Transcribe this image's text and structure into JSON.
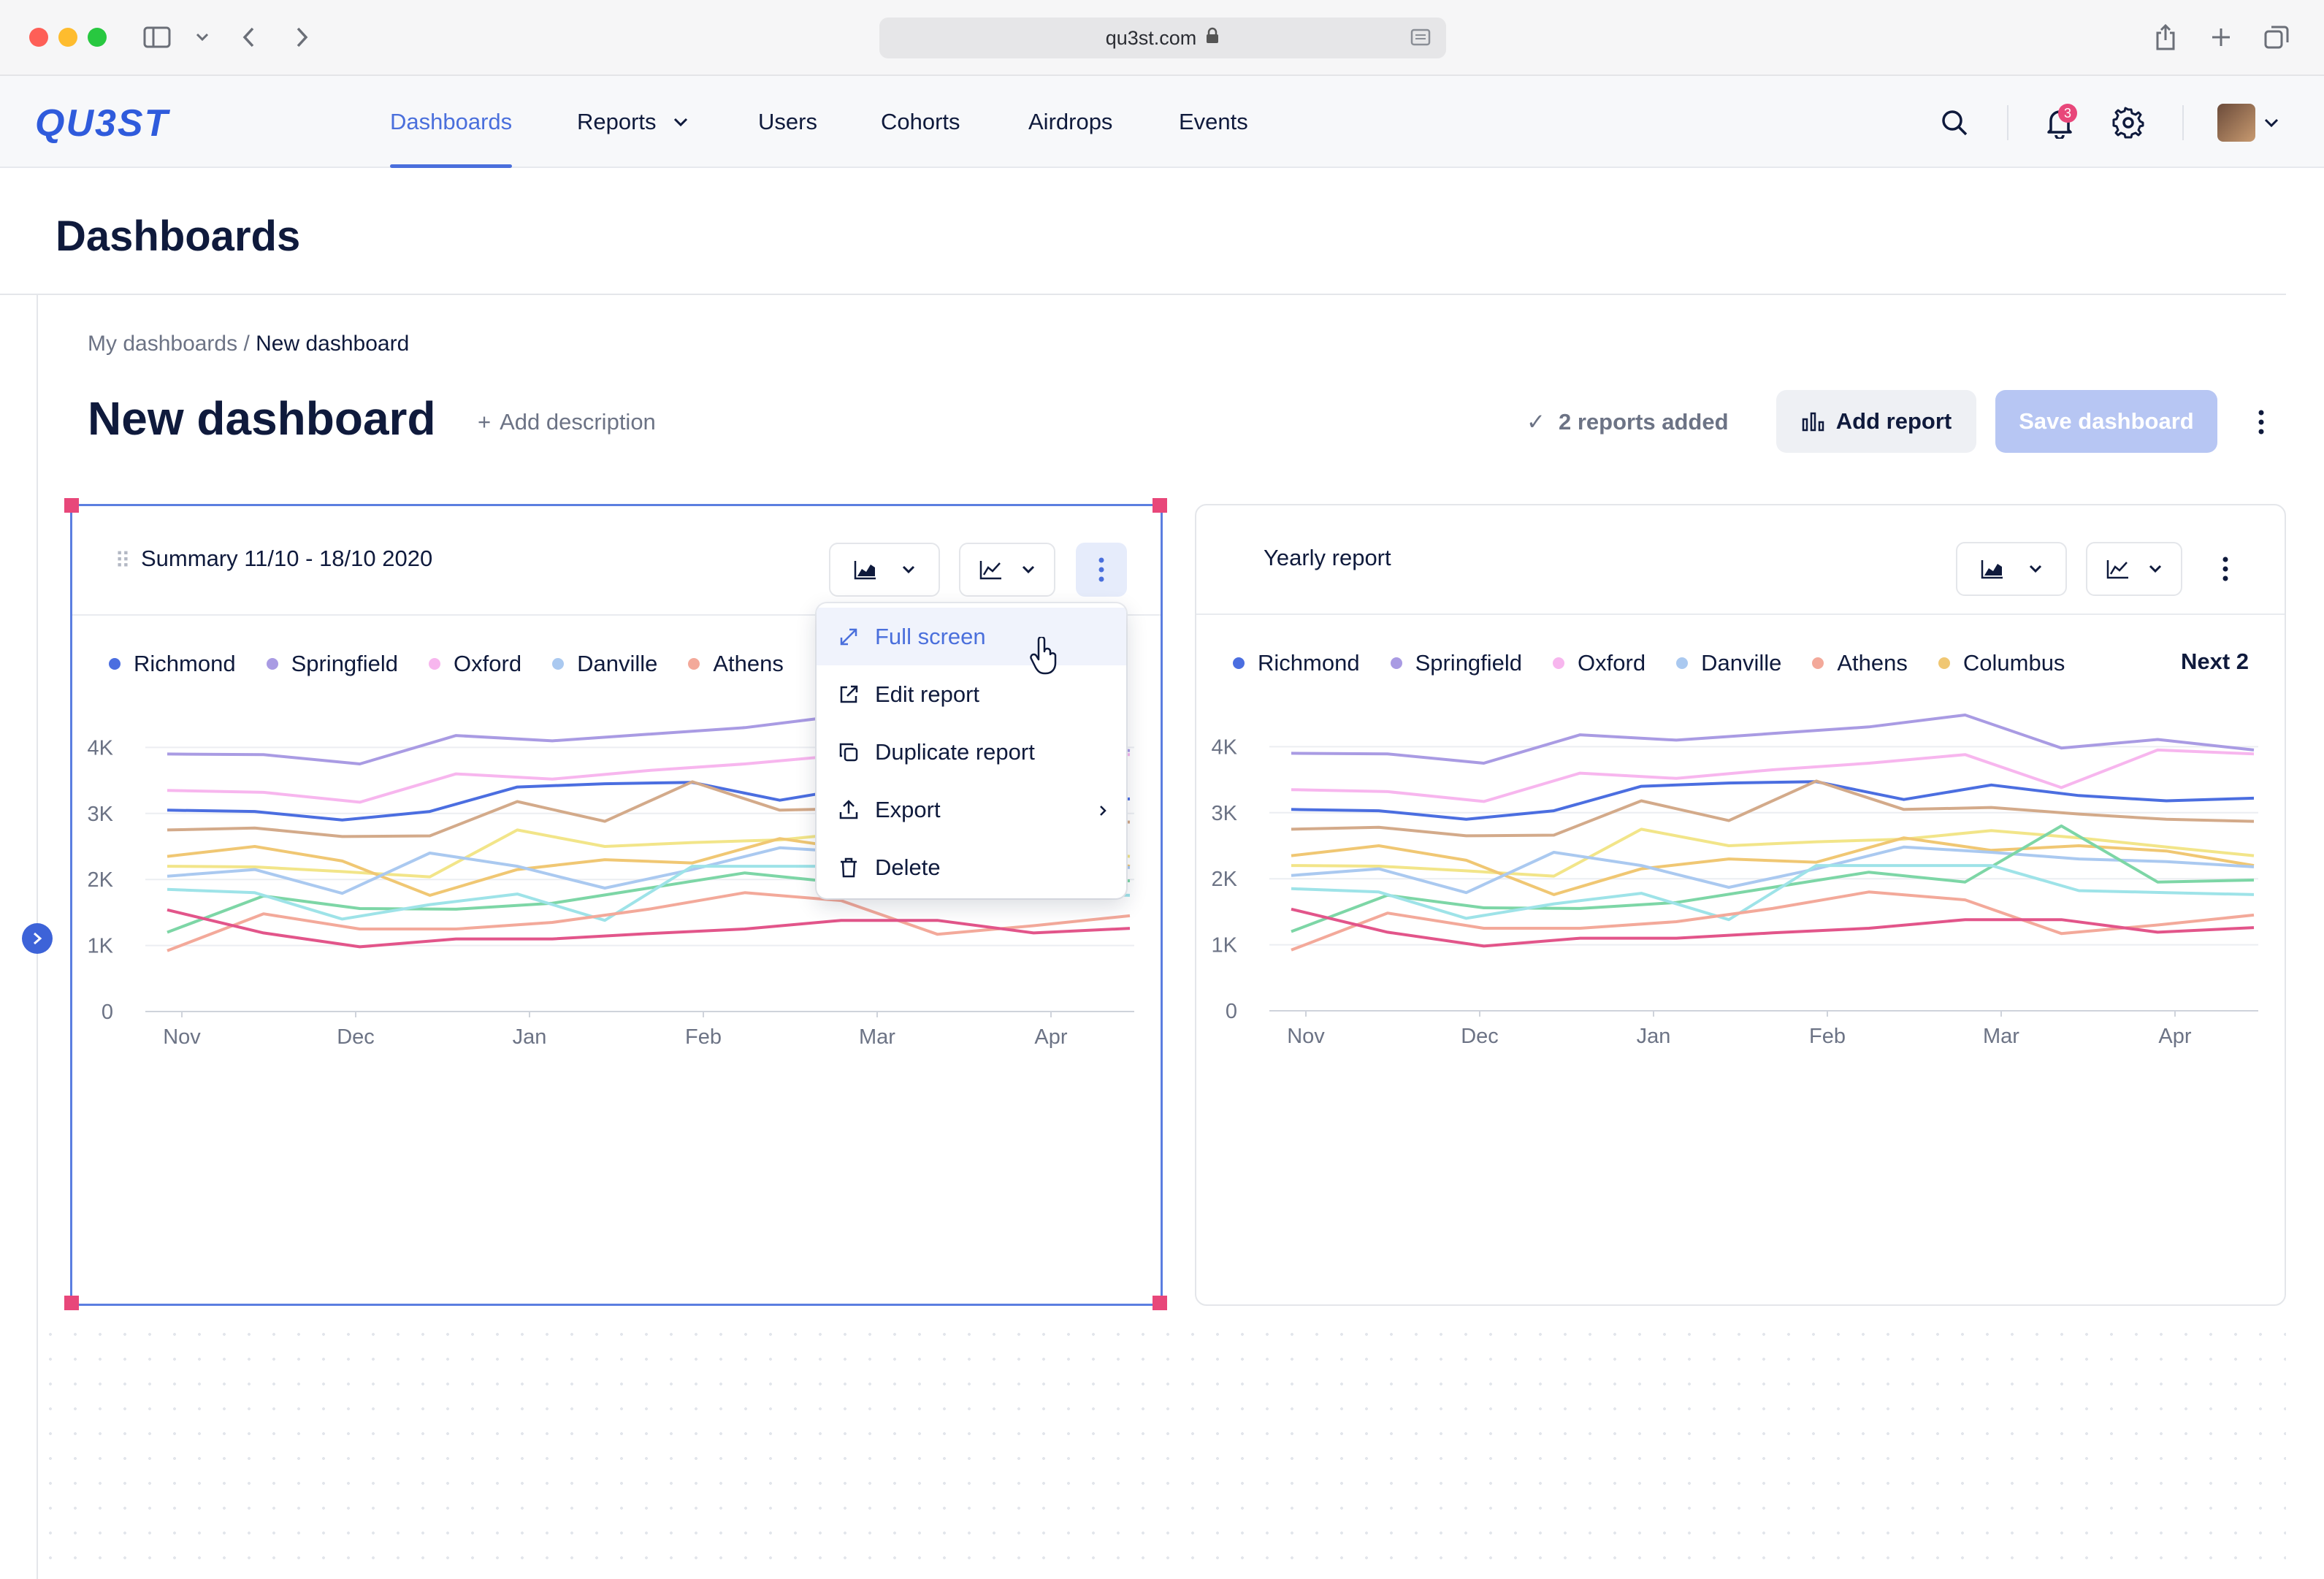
{
  "browser": {
    "url": "qu3st.com"
  },
  "app": {
    "logo_text": "QU3ST"
  },
  "nav": {
    "items": [
      {
        "label": "Dashboards",
        "active": true
      },
      {
        "label": "Reports",
        "has_dropdown": true
      },
      {
        "label": "Users"
      },
      {
        "label": "Cohorts"
      },
      {
        "label": "Airdrops"
      },
      {
        "label": "Events"
      }
    ],
    "notification_count": "3"
  },
  "page": {
    "title": "Dashboards",
    "breadcrumb_parent": "My dashboards",
    "breadcrumb_separator": " / ",
    "breadcrumb_current": "New dashboard",
    "dashboard_title": "New dashboard",
    "add_description": "Add description",
    "reports_added": "2 reports added",
    "add_report_label": "Add report",
    "save_dashboard_label": "Save dashboard"
  },
  "cards": [
    {
      "title": "Summary 11/10 - 18/10 2020",
      "legend": [
        "Richmond",
        "Springfield",
        "Oxford",
        "Danville",
        "Athens"
      ],
      "legend_more": ""
    },
    {
      "title": "Yearly report",
      "legend": [
        "Richmond",
        "Springfield",
        "Oxford",
        "Danville",
        "Athens",
        "Columbus"
      ],
      "legend_more": "Next 2"
    }
  ],
  "menu": {
    "items": [
      {
        "label": "Full screen",
        "icon": "expand-icon",
        "hover": true
      },
      {
        "label": "Edit report",
        "icon": "external-link-icon"
      },
      {
        "label": "Duplicate report",
        "icon": "copy-icon"
      },
      {
        "label": "Export",
        "icon": "upload-icon",
        "has_submenu": true
      },
      {
        "label": "Delete",
        "icon": "trash-icon"
      }
    ]
  },
  "colors": {
    "accent": "#4a6fdc",
    "save_disabled": "#b7c6f3",
    "handle": "#e8477a"
  },
  "chart_data": {
    "type": "line",
    "x_ticks": [
      "Nov",
      "Dec",
      "Jan",
      "Feb",
      "Mar",
      "Apr"
    ],
    "y_ticks": [
      "0",
      "1K",
      "2K",
      "3K",
      "4K"
    ],
    "ylim": [
      0,
      5000
    ],
    "grid": true,
    "series": [
      {
        "color": "#a99be3",
        "values": [
          3900,
          3890,
          3750,
          4180,
          4100,
          4200,
          4300,
          4480,
          3980,
          4110,
          3950
        ]
      },
      {
        "color": "#f7b6ee",
        "values": [
          3350,
          3320,
          3170,
          3600,
          3520,
          3650,
          3750,
          3880,
          3380,
          3950,
          3890
        ]
      },
      {
        "color": "#4b6ee0",
        "values": [
          3050,
          3030,
          2900,
          3030,
          3400,
          3450,
          3470,
          3200,
          3420,
          3260,
          3180,
          3220
        ]
      },
      {
        "color": "#d3aa8a",
        "values": [
          2750,
          2780,
          2650,
          2660,
          3180,
          2880,
          3480,
          3050,
          3080,
          2980,
          2900,
          2870
        ]
      },
      {
        "color": "#f2e589",
        "values": [
          2200,
          2190,
          2120,
          2040,
          2750,
          2500,
          2560,
          2600,
          2730,
          2620,
          2480,
          2350
        ]
      },
      {
        "color": "#f0c773",
        "values": [
          2350,
          2500,
          2280,
          1760,
          2150,
          2300,
          2250,
          2620,
          2430,
          2500,
          2420,
          2200
        ]
      },
      {
        "color": "#aac9f0",
        "values": [
          2050,
          2150,
          1790,
          2400,
          2200,
          1870,
          2150,
          2480,
          2400,
          2300,
          2260,
          2180
        ]
      },
      {
        "color": "#7dd6a6",
        "values": [
          1200,
          1750,
          1560,
          1550,
          1640,
          1870,
          2100,
          1950,
          2800,
          1950,
          1980
        ]
      },
      {
        "color": "#9ee3e8",
        "values": [
          1850,
          1800,
          1400,
          1620,
          1780,
          1380,
          2200,
          2200,
          2200,
          1820,
          1790,
          1760
        ]
      },
      {
        "color": "#f3a99a",
        "values": [
          920,
          1480,
          1250,
          1250,
          1350,
          1550,
          1800,
          1680,
          1170,
          1300,
          1450
        ]
      },
      {
        "color": "#e2558a",
        "values": [
          1540,
          1190,
          980,
          1100,
          1100,
          1180,
          1250,
          1380,
          1380,
          1190,
          1260
        ]
      }
    ]
  }
}
